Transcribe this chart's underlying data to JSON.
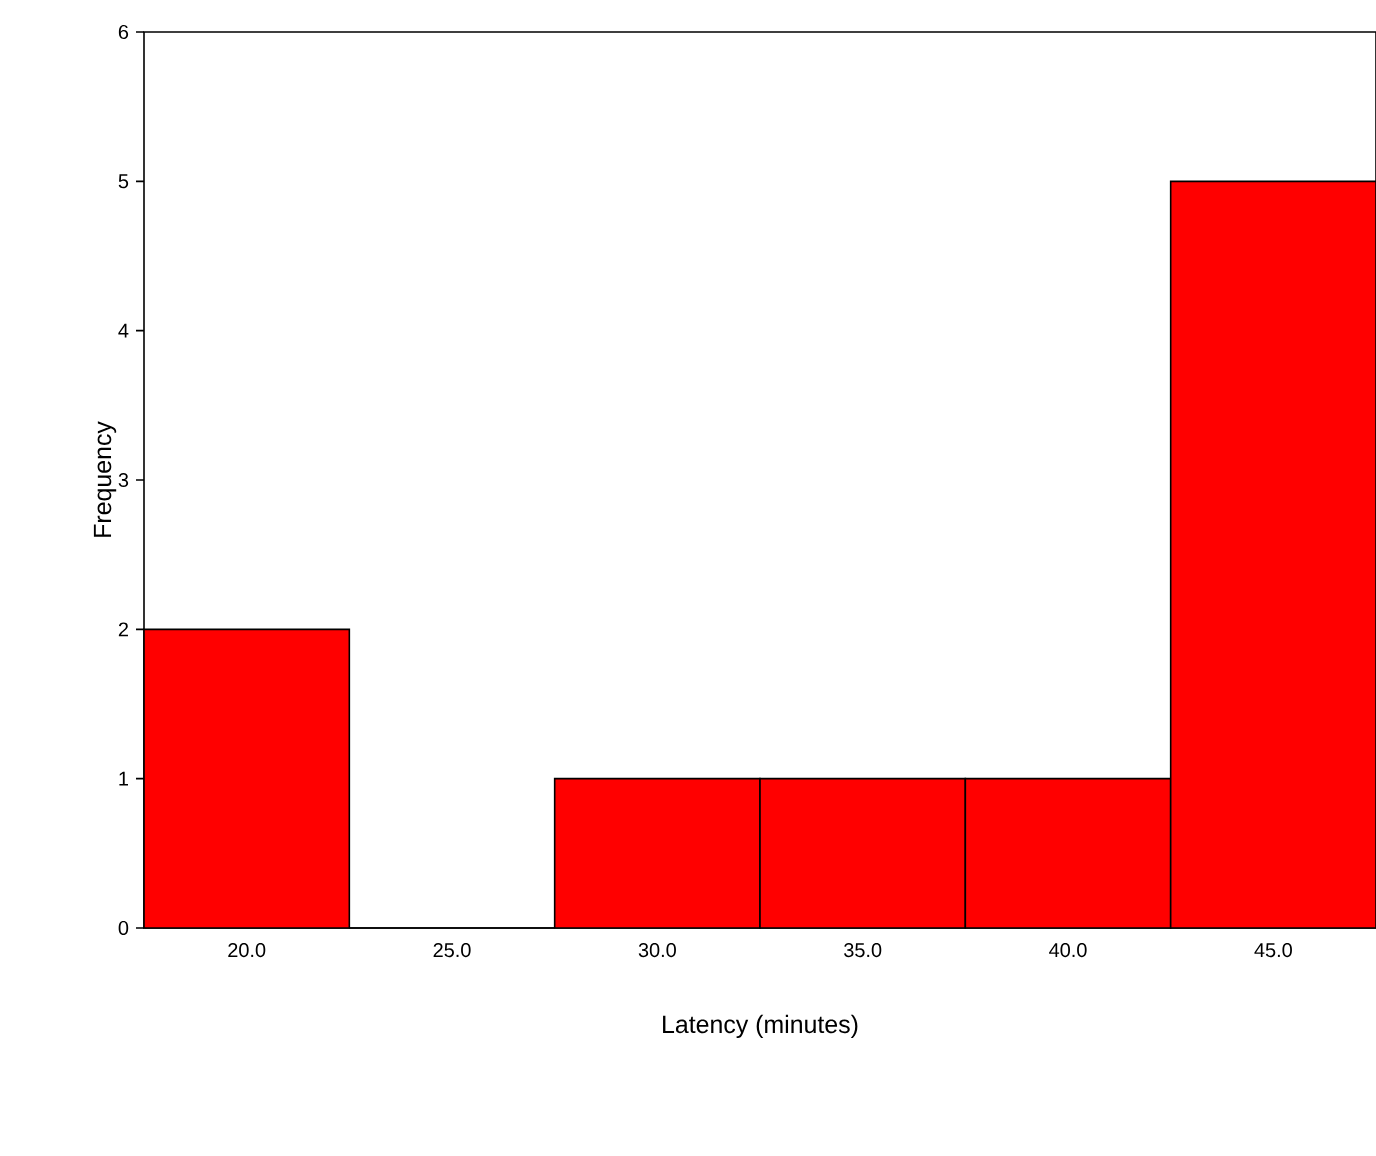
{
  "chart_data": {
    "type": "histogram",
    "xlabel": "Latency (minutes)",
    "ylabel": "Frequency",
    "bins": [
      17.5,
      22.5,
      27.5,
      32.5,
      37.5,
      42.5,
      47.5
    ],
    "values": [
      2,
      0,
      1,
      1,
      1,
      5
    ],
    "color": "#ff0000",
    "xlim": [
      17.5,
      47.5
    ],
    "ylim": [
      0,
      6
    ],
    "xticks": [
      {
        "value": 20,
        "label": "20.0"
      },
      {
        "value": 25,
        "label": "25.0"
      },
      {
        "value": 30,
        "label": "30.0"
      },
      {
        "value": 35,
        "label": "35.0"
      },
      {
        "value": 40,
        "label": "40.0"
      },
      {
        "value": 45,
        "label": "45.0"
      }
    ],
    "yticks": [
      0,
      1,
      2,
      3,
      4,
      5,
      6
    ]
  }
}
